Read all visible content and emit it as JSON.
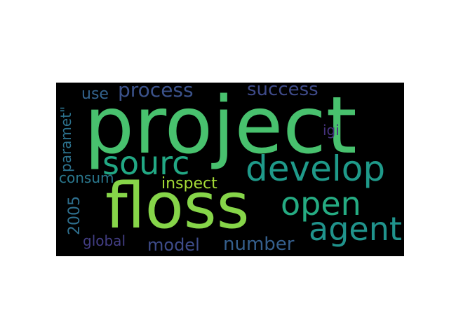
{
  "word_cloud": {
    "words": [
      {
        "text": "project",
        "color": "#48c16e"
      },
      {
        "text": "floss",
        "color": "#86d549"
      },
      {
        "text": "develop",
        "color": "#1f9a8a"
      },
      {
        "text": "open",
        "color": "#25ab82"
      },
      {
        "text": "agent",
        "color": "#20938c"
      },
      {
        "text": "sourc",
        "color": "#22a884"
      },
      {
        "text": "process",
        "color": "#3b528b"
      },
      {
        "text": "success",
        "color": "#3e4a89"
      },
      {
        "text": "use",
        "color": "#33638d"
      },
      {
        "text": "inspect",
        "color": "#a5db36"
      },
      {
        "text": "igi",
        "color": "#46327e"
      },
      {
        "text": "paramet\"",
        "color": "#2c728e"
      },
      {
        "text": "consum",
        "color": "#2a788e"
      },
      {
        "text": "2005",
        "color": "#2e6f8e"
      },
      {
        "text": "global",
        "color": "#433e85"
      },
      {
        "text": "model",
        "color": "#3e4c8a"
      },
      {
        "text": "number",
        "color": "#355f8d"
      }
    ]
  }
}
